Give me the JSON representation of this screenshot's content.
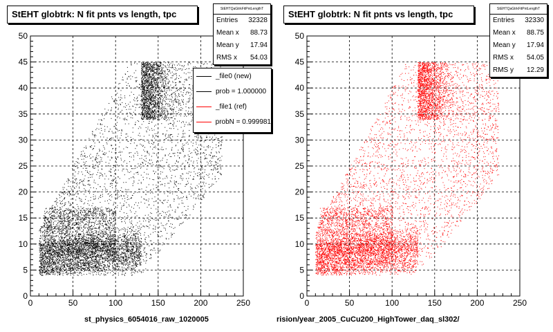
{
  "chart_data": [
    {
      "type": "scatter",
      "title": "StEHT globtrk: N fit pnts vs length, tpc",
      "xlabel": "st_physics_6054016_raw_1020005",
      "ylabel": "",
      "xlim": [
        0,
        250
      ],
      "ylim": [
        0,
        50
      ],
      "xticks": [
        "0",
        "50",
        "100",
        "150",
        "200",
        "250"
      ],
      "yticks": [
        "0",
        "5",
        "10",
        "15",
        "20",
        "25",
        "30",
        "35",
        "40",
        "45",
        "50"
      ],
      "grid": true,
      "color": "#000000",
      "stats": {
        "header": "StEHTQaGtrkFitPntLengthT",
        "rows": [
          {
            "label": "Entries",
            "value": "32328"
          },
          {
            "label": "Mean x",
            "value": "88.73"
          },
          {
            "label": "Mean y",
            "value": "17.94"
          },
          {
            "label": "RMS x",
            "value": "54.03"
          }
        ]
      },
      "legend": [
        {
          "label": "_file0 (new)",
          "color": "#000000"
        },
        {
          "label": "prob = 1.000000",
          "color": "#000000"
        },
        {
          "label": "_file1 (ref)",
          "color": "#ff0000"
        },
        {
          "label": "probN = 0.999981",
          "color": "#ff0000"
        }
      ]
    },
    {
      "type": "scatter",
      "title": "StEHT globtrk: N fit pnts vs length, tpc",
      "xlabel": "rision/year_2005_CuCu200_HighTower_daq_sl302/",
      "ylabel": "",
      "xlim": [
        0,
        250
      ],
      "ylim": [
        0,
        50
      ],
      "xticks": [
        "0",
        "50",
        "100",
        "150",
        "200",
        "250"
      ],
      "yticks": [
        "0",
        "5",
        "10",
        "15",
        "20",
        "25",
        "30",
        "35",
        "40",
        "45",
        "50"
      ],
      "grid": true,
      "color": "#ff0000",
      "stats": {
        "header": "StEHTQaGtrkFitPntLengthT",
        "rows": [
          {
            "label": "Entries",
            "value": "32330"
          },
          {
            "label": "Mean x",
            "value": "88.75"
          },
          {
            "label": "Mean y",
            "value": "17.94"
          },
          {
            "label": "RMS x",
            "value": "54.05"
          },
          {
            "label": "RMS y",
            "value": "12.29"
          }
        ]
      }
    }
  ]
}
